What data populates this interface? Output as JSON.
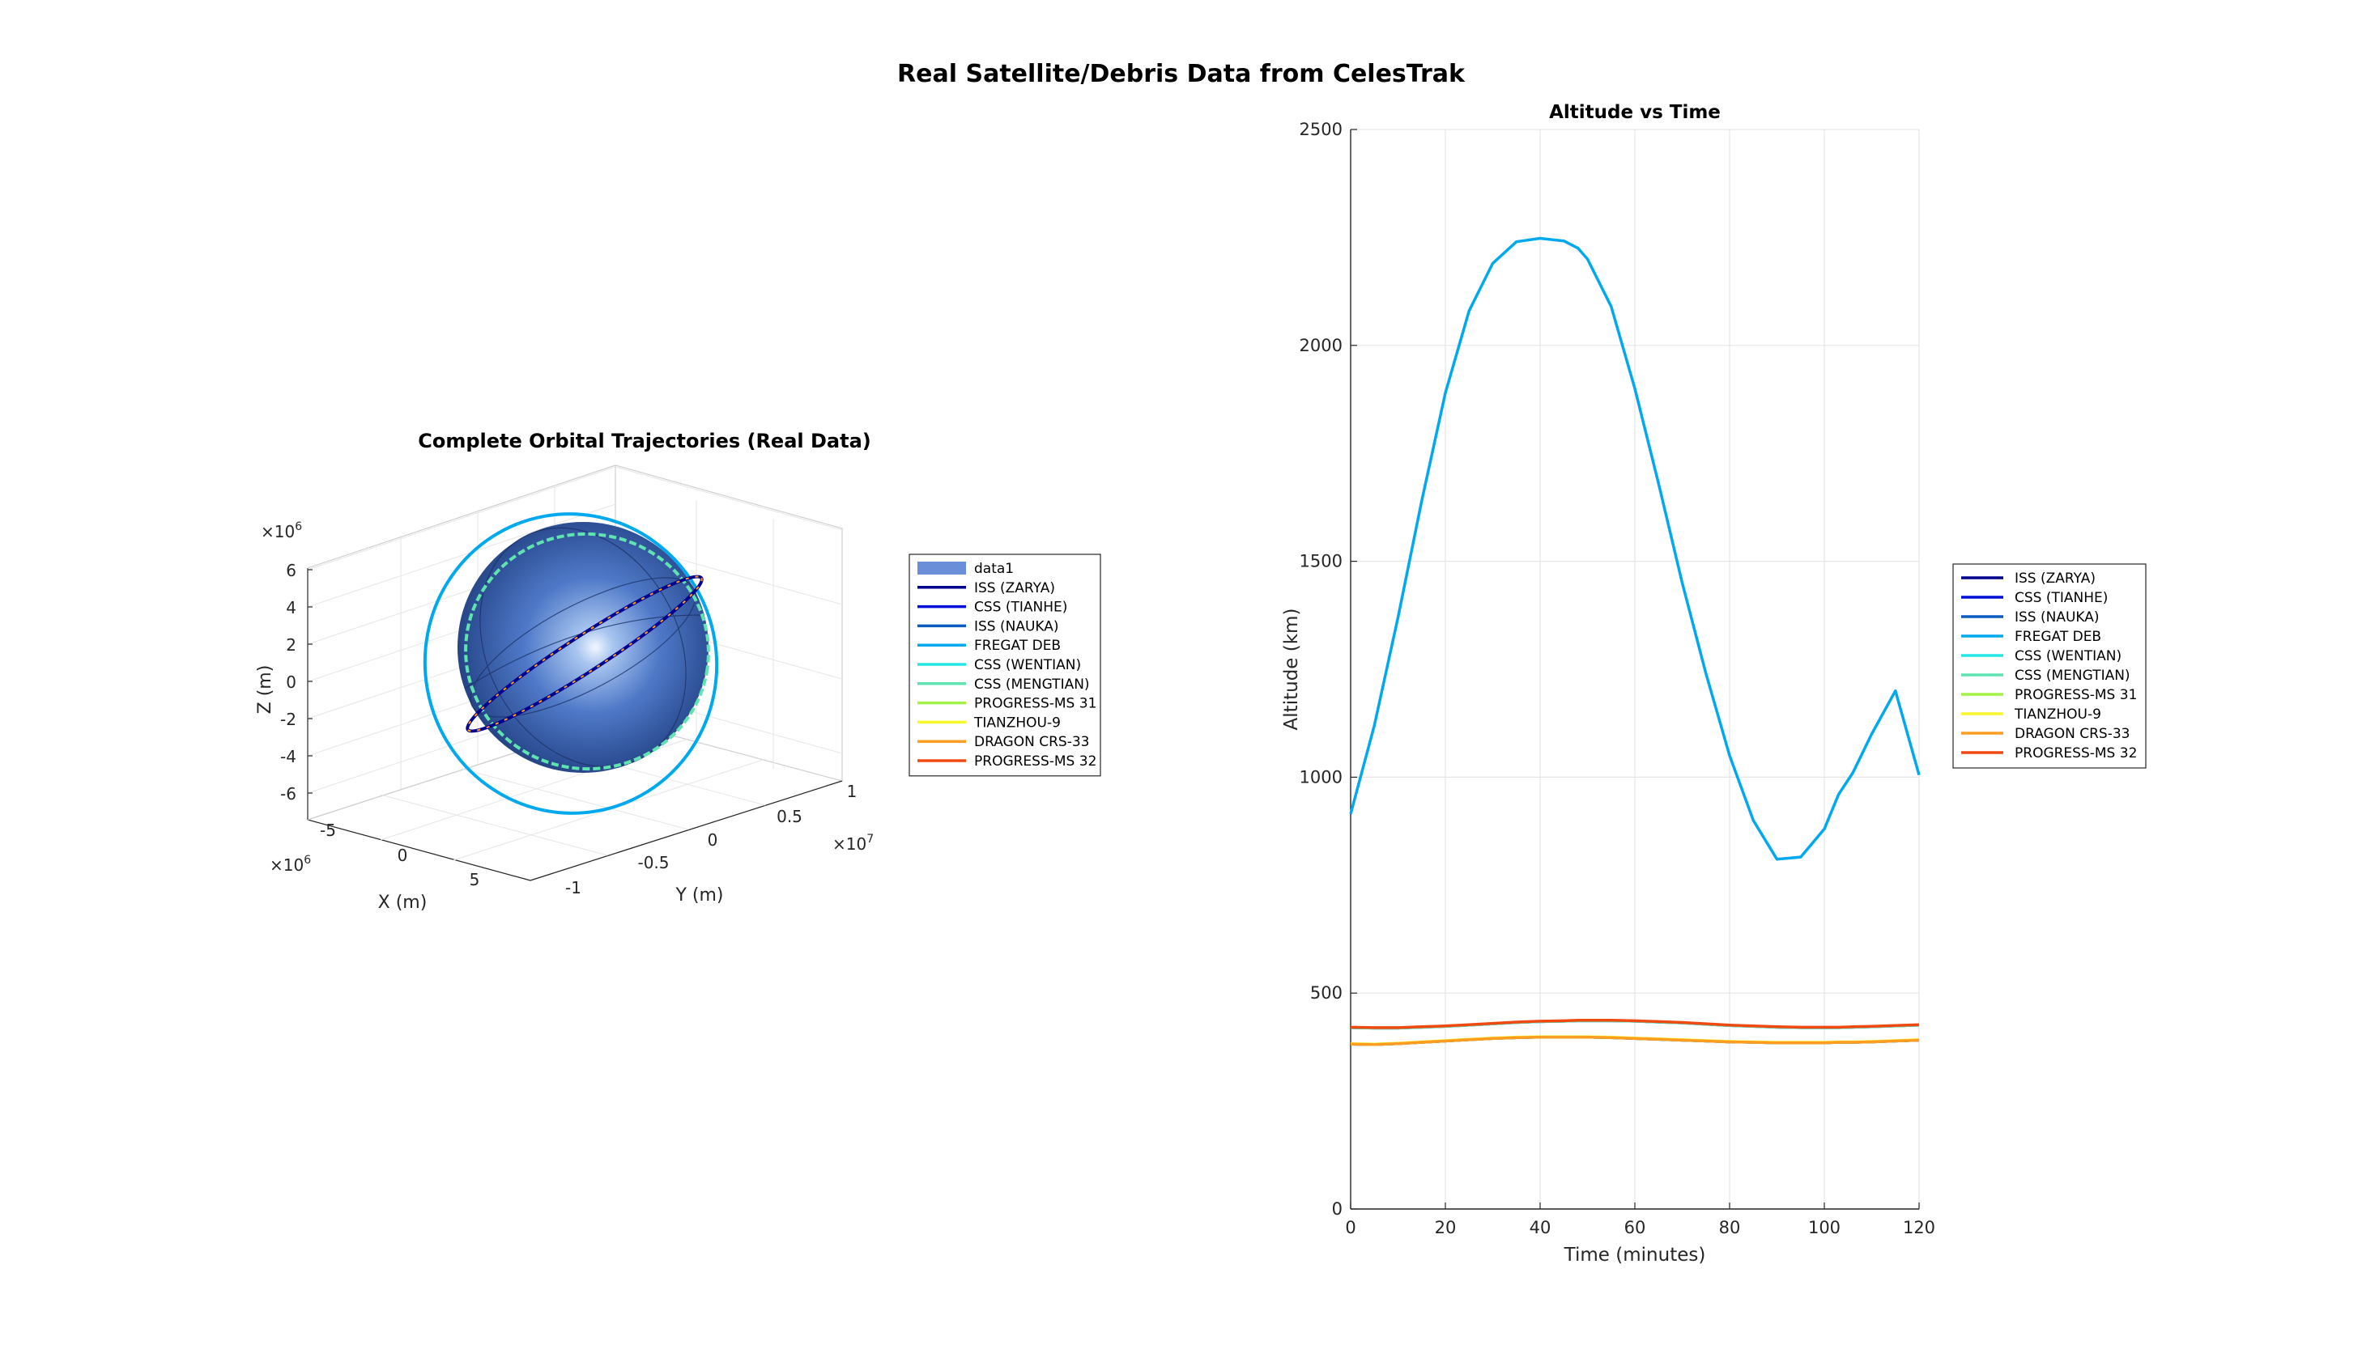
{
  "figure": {
    "title": "Real Satellite/Debris Data from CelesTrak"
  },
  "chart_data": [
    {
      "type": "line",
      "subtype": "3d-orbit-plot",
      "title": "Complete Orbital Trajectories (Real Data)",
      "xlabel": "X (m)",
      "ylabel": "Y (m)",
      "zlabel": "Z (m)",
      "x_ticks": [
        "-5",
        "0",
        "5"
      ],
      "x_exponent_base": "×10",
      "x_exponent": "6",
      "y_ticks": [
        "-1",
        "-0.5",
        "0",
        "0.5",
        "1"
      ],
      "y_exponent_base": "×10",
      "y_exponent": "7",
      "z_ticks": [
        "6",
        "4",
        "2",
        "0",
        "-2",
        "-4",
        "-6"
      ],
      "z_exponent_base": "×10",
      "z_exponent": "6",
      "xlim": [
        -7000000,
        7000000
      ],
      "ylim": [
        -10000000,
        10000000
      ],
      "zlim": [
        -6500000,
        6500000
      ],
      "grid": true,
      "legend_position": "outside-right",
      "legend": [
        {
          "name": "data1",
          "color": "#6a8fd8",
          "kind": "patch"
        },
        {
          "name": "ISS (ZARYA)",
          "color": "#00008f",
          "kind": "line"
        },
        {
          "name": "CSS (TIANHE)",
          "color": "#0010d9",
          "kind": "line"
        },
        {
          "name": "ISS (NAUKA)",
          "color": "#0a5cc0",
          "kind": "line"
        },
        {
          "name": "FREGAT DEB",
          "color": "#00a9ee",
          "kind": "line"
        },
        {
          "name": "CSS (WENTIAN)",
          "color": "#25e6e6",
          "kind": "line"
        },
        {
          "name": "CSS (MENGTIAN)",
          "color": "#5fe3b0",
          "kind": "line"
        },
        {
          "name": "PROGRESS-MS 31",
          "color": "#a3f246",
          "kind": "line"
        },
        {
          "name": "TIANZHOU-9",
          "color": "#f7f72a",
          "kind": "line"
        },
        {
          "name": "DRAGON CRS-33",
          "color": "#ff9d22",
          "kind": "line"
        },
        {
          "name": "PROGRESS-MS 32",
          "color": "#f04a12",
          "kind": "line"
        }
      ]
    },
    {
      "type": "line",
      "title": "Altitude vs Time",
      "xlabel": "Time (minutes)",
      "ylabel": "Altitude (km)",
      "xlim": [
        0,
        120
      ],
      "ylim": [
        0,
        2500
      ],
      "x_ticks": [
        0,
        20,
        40,
        60,
        80,
        100,
        120
      ],
      "y_ticks": [
        0,
        500,
        1000,
        1500,
        2000,
        2500
      ],
      "grid": true,
      "legend_position": "outside-right",
      "x": [
        0,
        5,
        10,
        15,
        20,
        25,
        30,
        35,
        40,
        45,
        48,
        50,
        55,
        60,
        65,
        70,
        75,
        80,
        85,
        90,
        95,
        100,
        103,
        106,
        110,
        115,
        120
      ],
      "series": [
        {
          "name": "ISS (ZARYA)",
          "color": "#00008f",
          "values": [
            382,
            381,
            383,
            386,
            389,
            392,
            395,
            397,
            398,
            398,
            398,
            398,
            397,
            395,
            393,
            391,
            389,
            387,
            386,
            385,
            385,
            385,
            386,
            386,
            387,
            389,
            391
          ]
        },
        {
          "name": "CSS (TIANHE)",
          "color": "#0010d9",
          "values": [
            420,
            419,
            419,
            421,
            423,
            426,
            429,
            432,
            434,
            435,
            436,
            436,
            436,
            435,
            433,
            431,
            428,
            425,
            423,
            421,
            420,
            420,
            420,
            421,
            422,
            424,
            426
          ]
        },
        {
          "name": "ISS (NAUKA)",
          "color": "#0a5cc0",
          "values": [
            382,
            381,
            383,
            386,
            389,
            392,
            395,
            397,
            398,
            398,
            398,
            398,
            397,
            395,
            393,
            391,
            389,
            387,
            386,
            385,
            385,
            385,
            386,
            386,
            387,
            389,
            391
          ]
        },
        {
          "name": "FREGAT DEB",
          "color": "#00a9ee",
          "values": [
            915,
            1120,
            1370,
            1640,
            1890,
            2080,
            2190,
            2240,
            2248,
            2242,
            2225,
            2200,
            2090,
            1900,
            1680,
            1450,
            1240,
            1050,
            900,
            810,
            815,
            880,
            960,
            1010,
            1100,
            1200,
            1005
          ]
        },
        {
          "name": "CSS (WENTIAN)",
          "color": "#25e6e6",
          "values": [
            420,
            419,
            419,
            421,
            423,
            426,
            429,
            432,
            434,
            435,
            436,
            436,
            436,
            435,
            433,
            431,
            428,
            425,
            423,
            421,
            420,
            420,
            420,
            421,
            422,
            424,
            426
          ]
        },
        {
          "name": "CSS (MENGTIAN)",
          "color": "#5fe3b0",
          "values": [
            420,
            419,
            419,
            421,
            423,
            426,
            429,
            432,
            434,
            435,
            436,
            436,
            436,
            435,
            433,
            431,
            428,
            425,
            423,
            421,
            420,
            420,
            420,
            421,
            422,
            424,
            426
          ]
        },
        {
          "name": "PROGRESS-MS 31",
          "color": "#a3f246",
          "values": [
            382,
            381,
            383,
            386,
            389,
            392,
            395,
            397,
            398,
            398,
            398,
            398,
            397,
            395,
            393,
            391,
            389,
            387,
            386,
            385,
            385,
            385,
            386,
            386,
            387,
            389,
            391
          ]
        },
        {
          "name": "TIANZHOU-9",
          "color": "#f7f72a",
          "values": [
            383,
            382,
            384,
            387,
            390,
            393,
            396,
            398,
            399,
            399,
            399,
            399,
            398,
            396,
            394,
            392,
            390,
            388,
            387,
            386,
            386,
            386,
            387,
            387,
            388,
            390,
            392
          ]
        },
        {
          "name": "DRAGON CRS-33",
          "color": "#ff9d22",
          "values": [
            382,
            381,
            383,
            386,
            389,
            392,
            395,
            397,
            398,
            398,
            398,
            398,
            397,
            395,
            393,
            391,
            389,
            387,
            386,
            385,
            385,
            385,
            386,
            386,
            387,
            389,
            391
          ]
        },
        {
          "name": "PROGRESS-MS 32",
          "color": "#f04a12",
          "values": [
            421,
            420,
            420,
            422,
            424,
            427,
            430,
            433,
            435,
            436,
            437,
            437,
            437,
            436,
            434,
            432,
            429,
            426,
            424,
            422,
            421,
            421,
            421,
            422,
            423,
            425,
            427
          ]
        }
      ]
    }
  ]
}
